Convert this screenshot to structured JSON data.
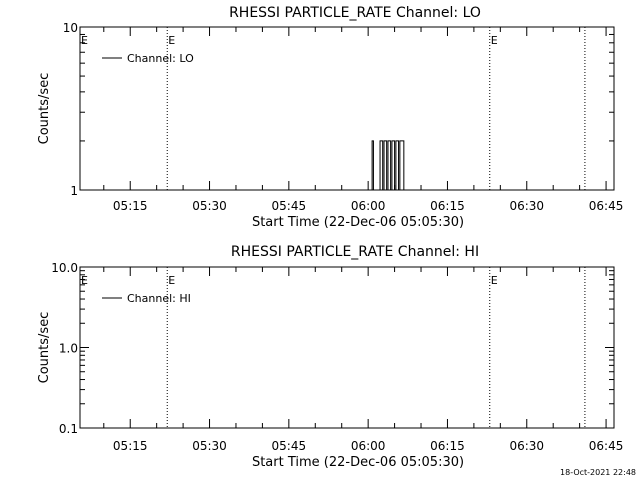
{
  "chart_data": [
    {
      "type": "line",
      "title": "RHESSI PARTICLE_RATE Channel: LO",
      "xlabel": "Start Time (22-Dec-06 05:05:30)",
      "ylabel": "Counts/sec",
      "yscale": "log",
      "ylim": [
        1,
        10
      ],
      "yticks": [
        "1",
        "10"
      ],
      "xlim": [
        "05:05:30",
        "06:46:30"
      ],
      "xticks": [
        "05:15",
        "05:30",
        "05:45",
        "06:00",
        "06:15",
        "06:30",
        "06:45"
      ],
      "legend": {
        "position": "top-left",
        "entry": "Channel: LO"
      },
      "event_markers": [
        {
          "time": "05:22:00",
          "label": "E"
        },
        {
          "time": "06:23:00",
          "label": "E"
        },
        {
          "time": "06:41:00",
          "label": ""
        }
      ],
      "series": [
        {
          "name": "Channel: LO",
          "x": [
            "06:00:30",
            "06:00:45",
            "06:01:00",
            "06:02:00",
            "06:02:15",
            "06:02:45",
            "06:03:00",
            "06:03:30",
            "06:03:45",
            "06:04:15",
            "06:04:30",
            "06:05:00",
            "06:05:15",
            "06:05:45",
            "06:06:00",
            "06:06:30",
            "06:06:45"
          ],
          "values": [
            1,
            2,
            1,
            1,
            2,
            1,
            2,
            1,
            2,
            1,
            2,
            1,
            2,
            1,
            2,
            2,
            1
          ]
        }
      ]
    },
    {
      "type": "line",
      "title": "RHESSI PARTICLE_RATE Channel: HI",
      "xlabel": "Start Time (22-Dec-06 05:05:30)",
      "ylabel": "Counts/sec",
      "yscale": "log",
      "ylim": [
        0.1,
        10
      ],
      "yticks": [
        "0.1",
        "1.0",
        "10.0"
      ],
      "xlim": [
        "05:05:30",
        "06:46:30"
      ],
      "xticks": [
        "05:15",
        "05:30",
        "05:45",
        "06:00",
        "06:15",
        "06:30",
        "06:45"
      ],
      "legend": {
        "position": "top-left",
        "entry": "Channel: HI"
      },
      "event_markers": [
        {
          "time": "05:22:00",
          "label": "E"
        },
        {
          "time": "06:23:00",
          "label": "E"
        },
        {
          "time": "06:41:00",
          "label": ""
        }
      ],
      "series": [
        {
          "name": "Channel: HI",
          "x": [],
          "values": []
        }
      ]
    }
  ],
  "footer": {
    "timestamp": "18-Oct-2021 22:48"
  },
  "colors": {
    "background": "#ffffff",
    "foreground": "#000000"
  }
}
